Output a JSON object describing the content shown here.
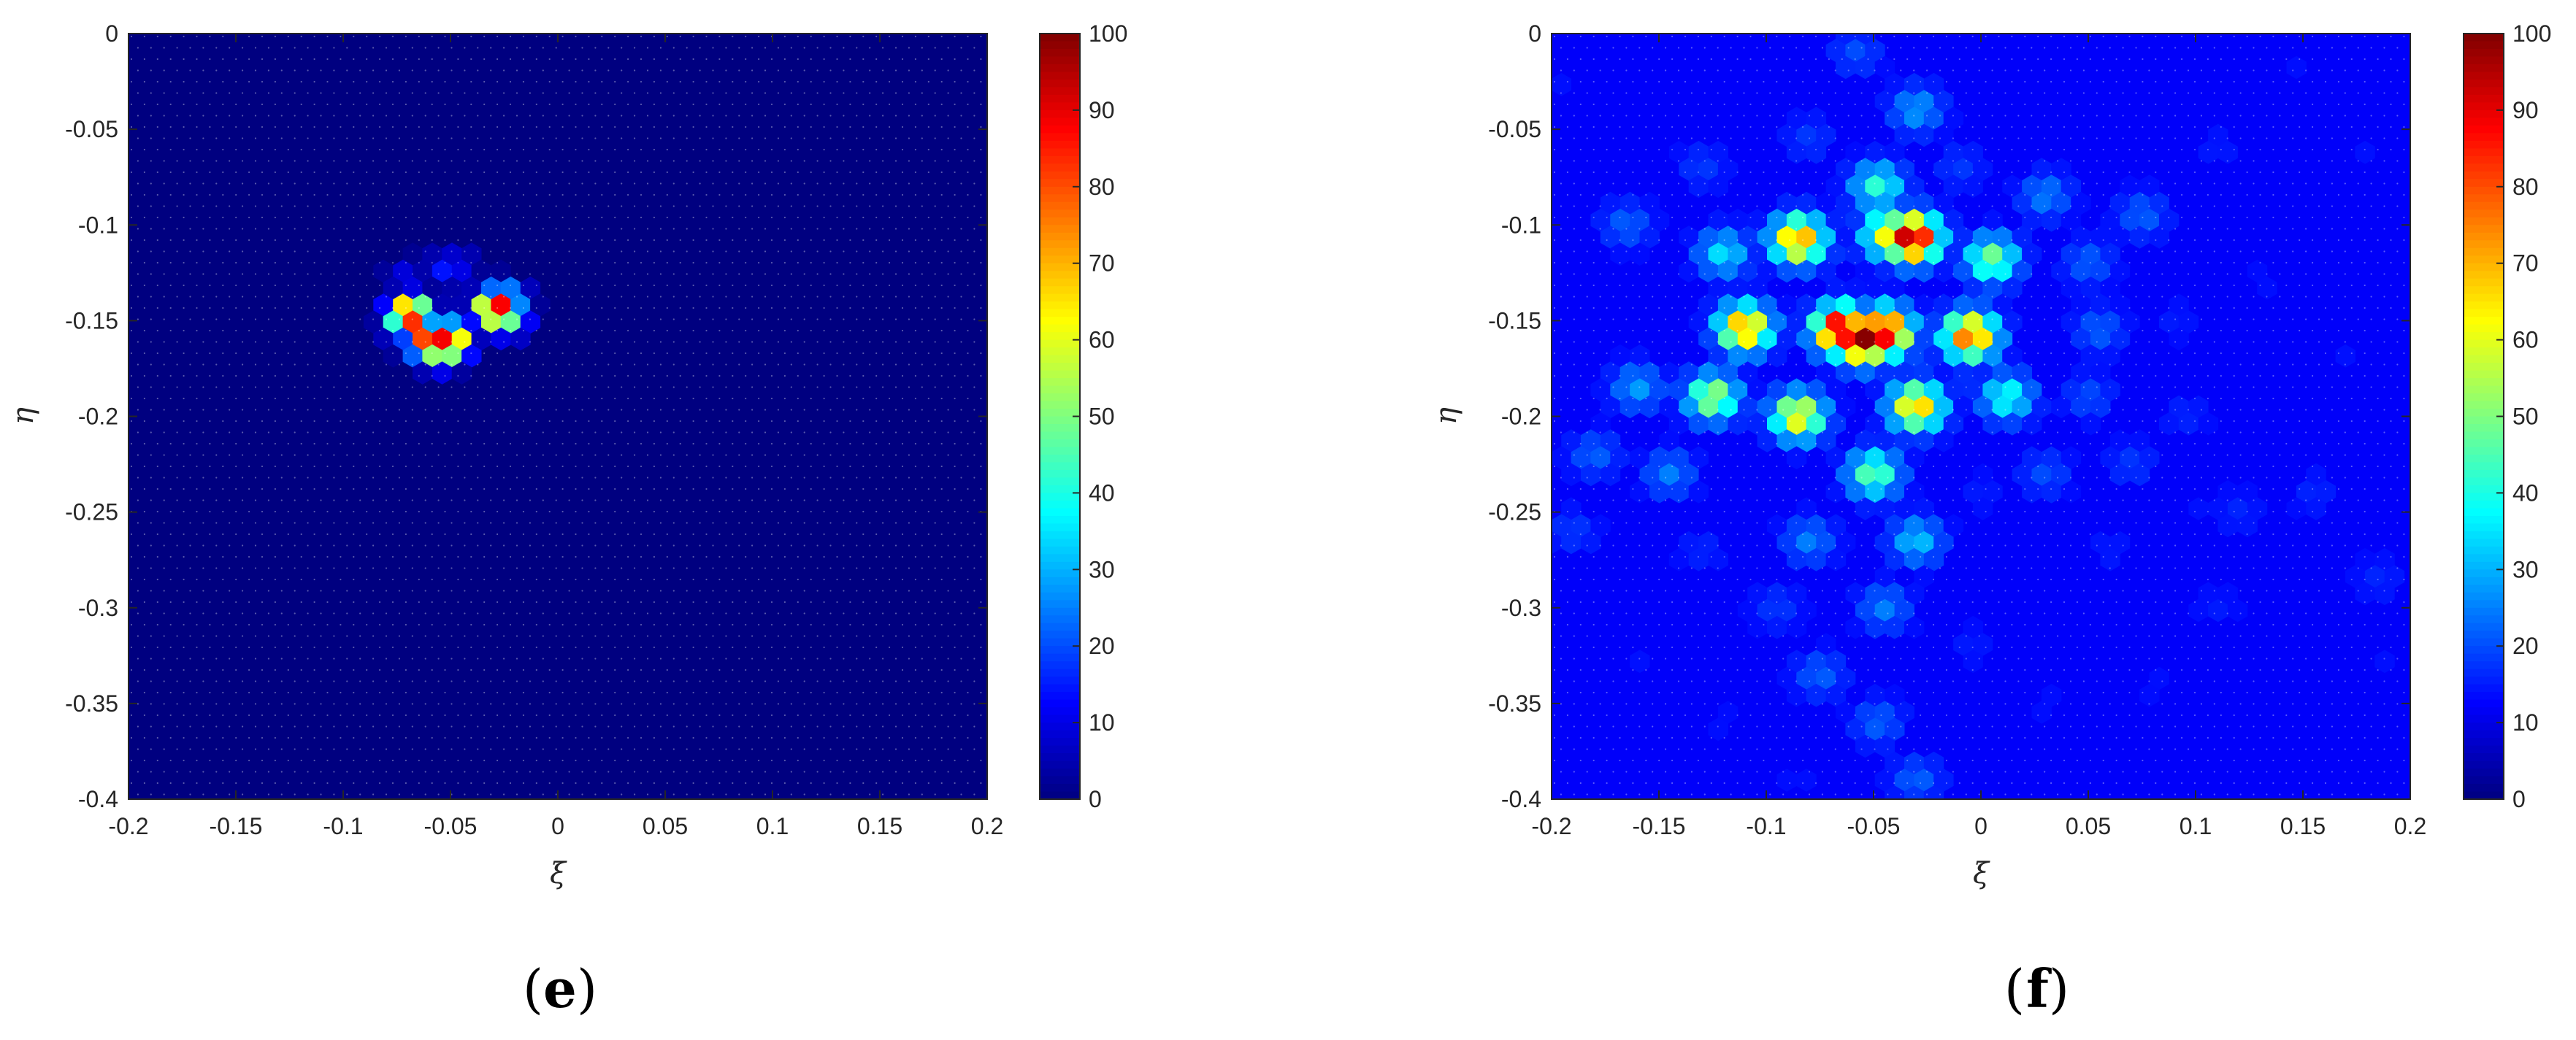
{
  "chart_data": [
    {
      "type": "heatmap",
      "panel_label": "e",
      "xlabel": "ξ",
      "ylabel": "η",
      "xlim": [
        -0.2,
        0.2
      ],
      "ylim": [
        -0.4,
        0
      ],
      "x_ticks": [
        "-0.2",
        "-0.15",
        "-0.1",
        "-0.05",
        "0",
        "0.05",
        "0.1",
        "0.15",
        "0.2"
      ],
      "y_ticks": [
        "0",
        "-0.05",
        "-0.1",
        "-0.15",
        "-0.2",
        "-0.25",
        "-0.3",
        "-0.35",
        "-0.4"
      ],
      "colorbar": {
        "min": 0,
        "max": 100,
        "ticks": [
          "100",
          "90",
          "80",
          "70",
          "60",
          "50",
          "40",
          "30",
          "20",
          "10",
          "0"
        ],
        "colormap": "jet"
      },
      "background_value": 0,
      "hotspots": [
        {
          "xi": -0.069,
          "eta": -0.147,
          "value": 100
        },
        {
          "xi": -0.071,
          "eta": -0.156,
          "value": 22
        },
        {
          "xi": -0.059,
          "eta": -0.161,
          "value": 100
        },
        {
          "xi": -0.055,
          "eta": -0.165,
          "value": 62
        },
        {
          "xi": -0.051,
          "eta": -0.161,
          "value": 100
        },
        {
          "xi": -0.029,
          "eta": -0.144,
          "value": 100
        },
        {
          "xi": -0.024,
          "eta": -0.14,
          "value": 45
        },
        {
          "xi": -0.024,
          "eta": -0.148,
          "value": 55
        },
        {
          "xi": -0.029,
          "eta": -0.15,
          "value": 25
        },
        {
          "xi": -0.052,
          "eta": -0.123,
          "value": 15
        },
        {
          "xi": -0.047,
          "eta": -0.121,
          "value": 12
        },
        {
          "xi": -0.071,
          "eta": -0.127,
          "value": 10
        }
      ]
    },
    {
      "type": "heatmap",
      "panel_label": "f",
      "xlabel": "ξ",
      "ylabel": "η",
      "xlim": [
        -0.2,
        0.2
      ],
      "ylim": [
        -0.4,
        0
      ],
      "x_ticks": [
        "-0.2",
        "-0.15",
        "-0.1",
        "-0.05",
        "0",
        "0.05",
        "0.1",
        "0.15",
        "0.2"
      ],
      "y_ticks": [
        "0",
        "-0.05",
        "-0.1",
        "-0.15",
        "-0.2",
        "-0.25",
        "-0.3",
        "-0.35",
        "-0.4"
      ],
      "colorbar": {
        "min": 0,
        "max": 100,
        "ticks": [
          "100",
          "90",
          "80",
          "70",
          "60",
          "50",
          "40",
          "30",
          "20",
          "10",
          "0"
        ],
        "colormap": "jet"
      },
      "background_value": 12,
      "hotspots": [
        {
          "xi": -0.065,
          "eta": -0.155,
          "value": 100
        },
        {
          "xi": -0.055,
          "eta": -0.16,
          "value": 100
        },
        {
          "xi": -0.045,
          "eta": -0.156,
          "value": 95
        },
        {
          "xi": -0.032,
          "eta": -0.107,
          "value": 100
        },
        {
          "xi": -0.042,
          "eta": -0.105,
          "value": 65
        },
        {
          "xi": -0.085,
          "eta": -0.108,
          "value": 75
        },
        {
          "xi": -0.11,
          "eta": -0.154,
          "value": 75
        },
        {
          "xi": -0.005,
          "eta": -0.158,
          "value": 80
        },
        {
          "xi": -0.03,
          "eta": -0.195,
          "value": 70
        },
        {
          "xi": -0.085,
          "eta": -0.2,
          "value": 65
        },
        {
          "xi": -0.125,
          "eta": -0.19,
          "value": 55
        },
        {
          "xi": 0.005,
          "eta": -0.118,
          "value": 50
        },
        {
          "xi": -0.05,
          "eta": -0.23,
          "value": 48
        },
        {
          "xi": -0.048,
          "eta": -0.08,
          "value": 42
        },
        {
          "xi": 0.012,
          "eta": -0.19,
          "value": 40
        },
        {
          "xi": -0.12,
          "eta": -0.115,
          "value": 35
        },
        {
          "xi": -0.03,
          "eta": -0.265,
          "value": 32
        },
        {
          "xi": -0.045,
          "eta": -0.3,
          "value": 25
        },
        {
          "xi": -0.03,
          "eta": -0.04,
          "value": 28
        },
        {
          "xi": -0.16,
          "eta": -0.185,
          "value": 28
        },
        {
          "xi": -0.145,
          "eta": -0.23,
          "value": 25
        },
        {
          "xi": -0.18,
          "eta": -0.22,
          "value": 22
        },
        {
          "xi": -0.08,
          "eta": -0.265,
          "value": 25
        },
        {
          "xi": 0.03,
          "eta": -0.085,
          "value": 25
        },
        {
          "xi": 0.055,
          "eta": -0.155,
          "value": 22
        },
        {
          "xi": 0.05,
          "eta": -0.12,
          "value": 22
        },
        {
          "xi": 0.075,
          "eta": -0.095,
          "value": 22
        },
        {
          "xi": 0.05,
          "eta": -0.19,
          "value": 20
        },
        {
          "xi": 0.03,
          "eta": -0.23,
          "value": 20
        },
        {
          "xi": -0.075,
          "eta": -0.335,
          "value": 22
        },
        {
          "xi": -0.048,
          "eta": -0.36,
          "value": 22
        },
        {
          "xi": -0.03,
          "eta": -0.39,
          "value": 22
        },
        {
          "xi": -0.165,
          "eta": -0.1,
          "value": 22
        },
        {
          "xi": -0.13,
          "eta": -0.07,
          "value": 18
        },
        {
          "xi": -0.08,
          "eta": -0.055,
          "value": 18
        },
        {
          "xi": -0.058,
          "eta": -0.01,
          "value": 20
        },
        {
          "xi": -0.01,
          "eta": -0.07,
          "value": 18
        },
        {
          "xi": -0.095,
          "eta": -0.3,
          "value": 18
        },
        {
          "xi": -0.19,
          "eta": -0.26,
          "value": 18
        },
        {
          "xi": -0.13,
          "eta": -0.27,
          "value": 16
        },
        {
          "xi": 0.07,
          "eta": -0.225,
          "value": 18
        },
        {
          "xi": 0.095,
          "eta": -0.2,
          "value": 16
        },
        {
          "xi": 0.12,
          "eta": -0.25,
          "value": 16
        },
        {
          "xi": 0.155,
          "eta": -0.24,
          "value": 16
        },
        {
          "xi": 0.185,
          "eta": -0.285,
          "value": 16
        },
        {
          "xi": 0.11,
          "eta": -0.3,
          "value": 15
        },
        {
          "xi": 0.06,
          "eta": -0.27,
          "value": 15
        },
        {
          "xi": 0.0,
          "eta": -0.24,
          "value": 15
        },
        {
          "xi": 0.11,
          "eta": -0.06,
          "value": 15
        },
        {
          "xi": 0.15,
          "eta": -0.02,
          "value": 14
        },
        {
          "xi": 0.18,
          "eta": -0.06,
          "value": 14
        },
        {
          "xi": -0.005,
          "eta": -0.32,
          "value": 15
        },
        {
          "xi": 0.03,
          "eta": -0.35,
          "value": 14
        },
        {
          "xi": 0.08,
          "eta": -0.34,
          "value": 14
        },
        {
          "xi": 0.14,
          "eta": -0.34,
          "value": 13
        },
        {
          "xi": 0.19,
          "eta": -0.33,
          "value": 14
        },
        {
          "xi": -0.16,
          "eta": -0.33,
          "value": 14
        },
        {
          "xi": -0.12,
          "eta": -0.36,
          "value": 14
        },
        {
          "xi": -0.15,
          "eta": -0.38,
          "value": 13
        },
        {
          "xi": -0.085,
          "eta": -0.39,
          "value": 14
        },
        {
          "xi": 0.07,
          "eta": -0.39,
          "value": 13
        },
        {
          "xi": 0.15,
          "eta": -0.39,
          "value": 13
        },
        {
          "xi": -0.195,
          "eta": -0.03,
          "value": 14
        },
        {
          "xi": -0.11,
          "eta": -0.02,
          "value": 13
        },
        {
          "xi": 0.03,
          "eta": -0.02,
          "value": 13
        },
        {
          "xi": 0.09,
          "eta": -0.15,
          "value": 15
        },
        {
          "xi": 0.13,
          "eta": -0.13,
          "value": 14
        },
        {
          "xi": 0.17,
          "eta": -0.17,
          "value": 14
        },
        {
          "xi": 0.15,
          "eta": -0.1,
          "value": 13
        },
        {
          "xi": 0.19,
          "eta": -0.2,
          "value": 13
        },
        {
          "xi": 0.1,
          "eta": -0.25,
          "value": 14
        }
      ]
    }
  ]
}
